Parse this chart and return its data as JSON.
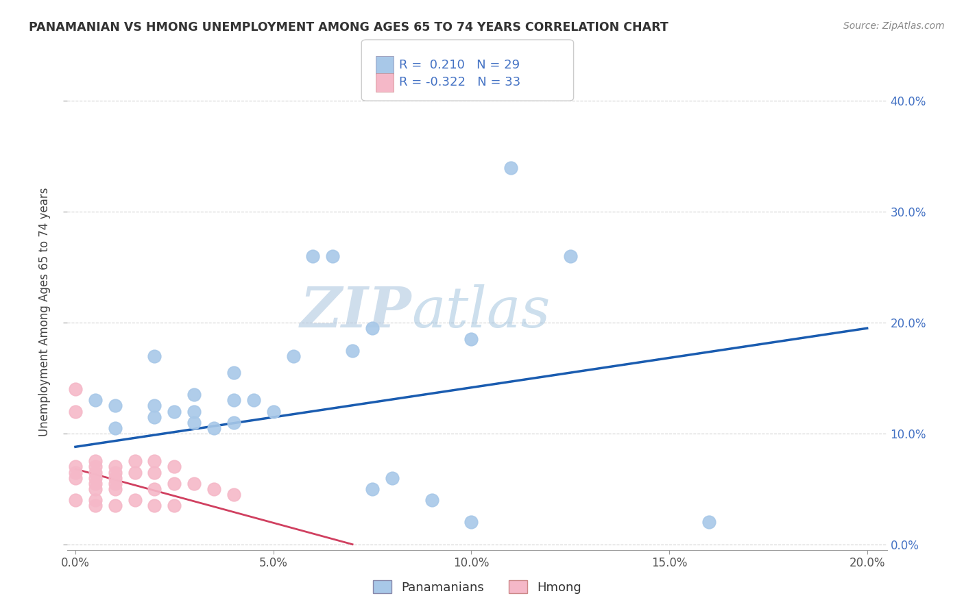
{
  "title": "PANAMANIAN VS HMONG UNEMPLOYMENT AMONG AGES 65 TO 74 YEARS CORRELATION CHART",
  "source": "Source: ZipAtlas.com",
  "ylabel": "Unemployment Among Ages 65 to 74 years",
  "xlim": [
    -0.002,
    0.205
  ],
  "ylim": [
    -0.005,
    0.425
  ],
  "xticks": [
    0.0,
    0.05,
    0.1,
    0.15,
    0.2
  ],
  "yticks": [
    0.0,
    0.1,
    0.2,
    0.3,
    0.4
  ],
  "xtick_labels": [
    "0.0%",
    "5.0%",
    "10.0%",
    "15.0%",
    "20.0%"
  ],
  "ytick_labels_right": [
    "0.0%",
    "10.0%",
    "20.0%",
    "30.0%",
    "40.0%"
  ],
  "panamanian_color": "#a8c8e8",
  "hmong_color": "#f5b8c8",
  "line_blue": "#1a5cb0",
  "line_pink": "#d04060",
  "R_panama": 0.21,
  "N_panama": 29,
  "R_hmong": -0.322,
  "N_hmong": 33,
  "watermark_zip": "ZIP",
  "watermark_atlas": "atlas",
  "panama_scatter_x": [
    0.005,
    0.01,
    0.01,
    0.02,
    0.02,
    0.025,
    0.03,
    0.03,
    0.035,
    0.04,
    0.04,
    0.045,
    0.05,
    0.055,
    0.06,
    0.065,
    0.07,
    0.075,
    0.08,
    0.09,
    0.1,
    0.11,
    0.125,
    0.16,
    0.1,
    0.075,
    0.04,
    0.03,
    0.02
  ],
  "panama_scatter_y": [
    0.13,
    0.125,
    0.105,
    0.125,
    0.115,
    0.12,
    0.12,
    0.11,
    0.105,
    0.13,
    0.11,
    0.13,
    0.12,
    0.17,
    0.26,
    0.26,
    0.175,
    0.05,
    0.06,
    0.04,
    0.02,
    0.34,
    0.26,
    0.02,
    0.185,
    0.195,
    0.155,
    0.135,
    0.17
  ],
  "hmong_scatter_x": [
    0.0,
    0.0,
    0.0,
    0.0,
    0.0,
    0.0,
    0.005,
    0.005,
    0.005,
    0.005,
    0.005,
    0.005,
    0.005,
    0.005,
    0.01,
    0.01,
    0.01,
    0.01,
    0.01,
    0.01,
    0.015,
    0.015,
    0.015,
    0.02,
    0.02,
    0.02,
    0.02,
    0.025,
    0.025,
    0.025,
    0.03,
    0.035,
    0.04
  ],
  "hmong_scatter_y": [
    0.14,
    0.12,
    0.07,
    0.065,
    0.06,
    0.04,
    0.075,
    0.07,
    0.065,
    0.06,
    0.055,
    0.05,
    0.04,
    0.035,
    0.07,
    0.065,
    0.06,
    0.055,
    0.05,
    0.035,
    0.075,
    0.065,
    0.04,
    0.075,
    0.065,
    0.05,
    0.035,
    0.07,
    0.055,
    0.035,
    0.055,
    0.05,
    0.045
  ],
  "blue_line_x0": 0.0,
  "blue_line_y0": 0.088,
  "blue_line_x1": 0.2,
  "blue_line_y1": 0.195,
  "pink_line_x0": 0.0,
  "pink_line_y0": 0.068,
  "pink_line_x1": 0.07,
  "pink_line_y1": 0.0
}
